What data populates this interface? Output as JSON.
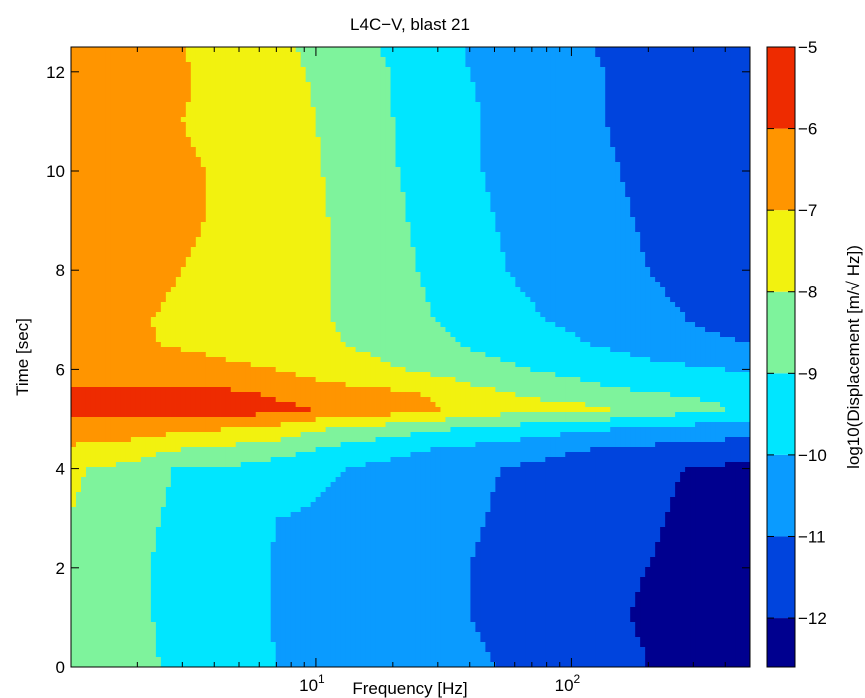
{
  "chart_data": {
    "type": "heatmap",
    "title": "L4C−V, blast 21",
    "xlabel": "Frequency [Hz]",
    "ylabel": "Time [sec]",
    "colorbar_label": "log10(Displacement [m/√ Hz])",
    "x_scale": "log",
    "xlim": [
      1.1,
      500
    ],
    "ylim": [
      0,
      12.5
    ],
    "clim": [
      -12.6,
      -5
    ],
    "x_ticks": [
      {
        "value": 10,
        "base": "10",
        "exp": "1"
      },
      {
        "value": 100,
        "base": "10",
        "exp": "2"
      }
    ],
    "y_ticks": [
      {
        "value": 0,
        "label": "0"
      },
      {
        "value": 2,
        "label": "2"
      },
      {
        "value": 4,
        "label": "4"
      },
      {
        "value": 6,
        "label": "6"
      },
      {
        "value": 8,
        "label": "8"
      },
      {
        "value": 10,
        "label": "10"
      },
      {
        "value": 12,
        "label": "12"
      }
    ],
    "colorbar_ticks": [
      {
        "value": -5,
        "label": "−5"
      },
      {
        "value": -6,
        "label": "−6"
      },
      {
        "value": -7,
        "label": "−7"
      },
      {
        "value": -8,
        "label": "−8"
      },
      {
        "value": -9,
        "label": "−9"
      },
      {
        "value": -10,
        "label": "−10"
      },
      {
        "value": -11,
        "label": "−11"
      },
      {
        "value": -12,
        "label": "−12"
      }
    ],
    "colormap": "jet",
    "contour_levels": [
      -13,
      -12,
      -11,
      -10,
      -9,
      -8,
      -7,
      -6,
      -5
    ],
    "level_colors": [
      "#00008f",
      "#0044dd",
      "#0a9bff",
      "#00e6ff",
      "#7ef39c",
      "#f2f20f",
      "#ff9500",
      "#ee2b00",
      "#800000"
    ],
    "time_axis": [
      0,
      1,
      2,
      3,
      4,
      4.4,
      4.8,
      5.2,
      5.6,
      6,
      6.5,
      7,
      8,
      9,
      10,
      11,
      12,
      12.5
    ],
    "frequency_axis": [
      1.1,
      2,
      3,
      4.5,
      7,
      10,
      15,
      25,
      40,
      70,
      120,
      200,
      320,
      500
    ],
    "values": [
      [
        -8,
        -8.5,
        -9.5,
        -9.3,
        -10,
        -10.1,
        -10.3,
        -10.6,
        -10.8,
        -11.3,
        -11.6,
        -12,
        -12.3,
        -12.6
      ],
      [
        -8,
        -8.7,
        -9.6,
        -9.3,
        -10.1,
        -10.2,
        -10.4,
        -10.8,
        -11,
        -11.5,
        -11.8,
        -12.1,
        -12.4,
        -12.6
      ],
      [
        -8,
        -8.8,
        -9.5,
        -9.4,
        -10.1,
        -10.2,
        -10.5,
        -10.8,
        -11,
        -11.4,
        -11.8,
        -12,
        -12.3,
        -12.5
      ],
      [
        -8,
        -8.6,
        -9.4,
        -9.3,
        -10,
        -10.1,
        -10.4,
        -10.7,
        -10.9,
        -11.3,
        -11.7,
        -11.9,
        -12.2,
        -12.4
      ],
      [
        -7.9,
        -8.3,
        -9.2,
        -9.1,
        -9.5,
        -9.8,
        -10.1,
        -10.5,
        -10.8,
        -11.2,
        -11.6,
        -11.8,
        -12.1,
        -12.2
      ],
      [
        -7.2,
        -7.5,
        -8,
        -8.2,
        -8.5,
        -9,
        -9.4,
        -9.9,
        -10.2,
        -10.6,
        -11,
        -11.2,
        -11.4,
        -11.5
      ],
      [
        -6.2,
        -6.5,
        -6.8,
        -7,
        -7.3,
        -7.9,
        -8.3,
        -8.7,
        -9.1,
        -9.5,
        -9.9,
        -10.1,
        -10.4,
        -10.6
      ],
      [
        -5.8,
        -5.7,
        -5.4,
        -5.3,
        -5.8,
        -6,
        -6.2,
        -6.6,
        -7.4,
        -7.6,
        -7.8,
        -8.3,
        -8.7,
        -9.2
      ],
      [
        -5.9,
        -6,
        -5.9,
        -6,
        -6.2,
        -6.6,
        -6.9,
        -7.1,
        -7.8,
        -8.3,
        -8.8,
        -9.1,
        -9.3,
        -9.6
      ],
      [
        -6.3,
        -6.5,
        -6.6,
        -6.8,
        -7,
        -7.4,
        -7.7,
        -8.1,
        -8.6,
        -9,
        -9.4,
        -9.7,
        -9.9,
        -10.1
      ],
      [
        -6.8,
        -6.9,
        -7.1,
        -7.3,
        -7.5,
        -7.8,
        -8.1,
        -8.6,
        -9.1,
        -9.6,
        -10,
        -10.4,
        -10.8,
        -11
      ],
      [
        -6.7,
        -6.9,
        -7.2,
        -7.4,
        -7.6,
        -7.9,
        -8.2,
        -8.8,
        -9.4,
        -9.9,
        -10.3,
        -10.7,
        -11.1,
        -11.3
      ],
      [
        -6.5,
        -6.7,
        -7,
        -7.2,
        -7.5,
        -7.8,
        -8.4,
        -9,
        -9.7,
        -10.2,
        -10.6,
        -11,
        -11.4,
        -11.6
      ],
      [
        -6.4,
        -6.6,
        -6.9,
        -7.1,
        -7.4,
        -7.8,
        -8.5,
        -9.1,
        -9.8,
        -10.3,
        -10.7,
        -11.1,
        -11.5,
        -11.7
      ],
      [
        -6.3,
        -6.6,
        -6.9,
        -7.1,
        -7.5,
        -7.9,
        -8.6,
        -9.2,
        -9.9,
        -10.4,
        -10.8,
        -11.2,
        -11.5,
        -11.7
      ],
      [
        -6.4,
        -6.8,
        -7,
        -7.2,
        -7.6,
        -8,
        -8.6,
        -9.3,
        -9.9,
        -10.4,
        -10.9,
        -11.3,
        -11.6,
        -11.8
      ],
      [
        -6.2,
        -6.7,
        -6.9,
        -7.3,
        -7.7,
        -8.1,
        -8.7,
        -9.3,
        -10,
        -10.5,
        -10.9,
        -11.3,
        -11.6,
        -11.8
      ],
      [
        -6.3,
        -6.8,
        -7,
        -7.4,
        -7.8,
        -8.2,
        -8.8,
        -9.4,
        -10.1,
        -10.6,
        -11,
        -11.4,
        -11.7,
        -11.9
      ]
    ]
  }
}
